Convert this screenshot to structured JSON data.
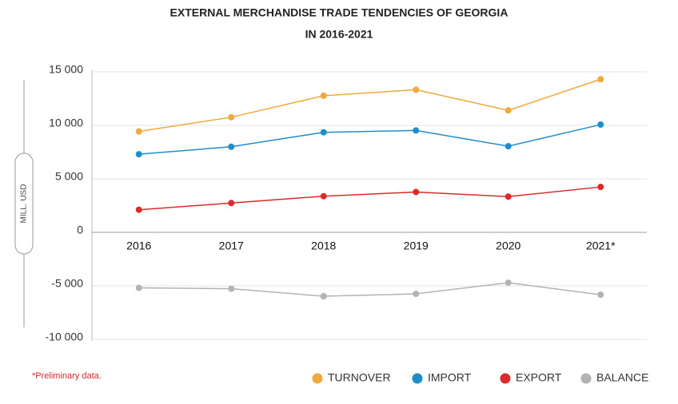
{
  "chart_data": {
    "type": "line",
    "title": "EXTERNAL MERCHANDISE TRADE TENDENCIES OF GEORGIA",
    "subtitle": "IN 2016-2021",
    "y_label": "MILL. USD",
    "note": "*Preliminary data.",
    "categories": [
      "2016",
      "2017",
      "2018",
      "2019",
      "2020",
      "2021*"
    ],
    "series": [
      {
        "name": "TURNOVER",
        "color": "#f0a93a",
        "values": [
          9430,
          10760,
          12770,
          13330,
          11400,
          14310
        ]
      },
      {
        "name": "IMPORT",
        "color": "#1e8ecb",
        "values": [
          7300,
          8000,
          9350,
          9520,
          8050,
          10070
        ]
      },
      {
        "name": "EXPORT",
        "color": "#dc2a2a",
        "values": [
          2110,
          2740,
          3380,
          3770,
          3340,
          4240
        ]
      },
      {
        "name": "BALANCE",
        "color": "#b3b3b3",
        "values": [
          -5190,
          -5270,
          -5970,
          -5750,
          -4710,
          -5830
        ]
      }
    ],
    "ylim": [
      -10000,
      15000
    ],
    "yticks": [
      {
        "value": -10000,
        "label": "-10 000"
      },
      {
        "value": -5000,
        "label": "-5 000"
      },
      0,
      {
        "value": 5000,
        "label": "5 000"
      },
      {
        "value": 10000,
        "label": "10 000"
      },
      {
        "value": 15000,
        "label": "15 000"
      }
    ],
    "grid": true,
    "legend": "bottom"
  }
}
